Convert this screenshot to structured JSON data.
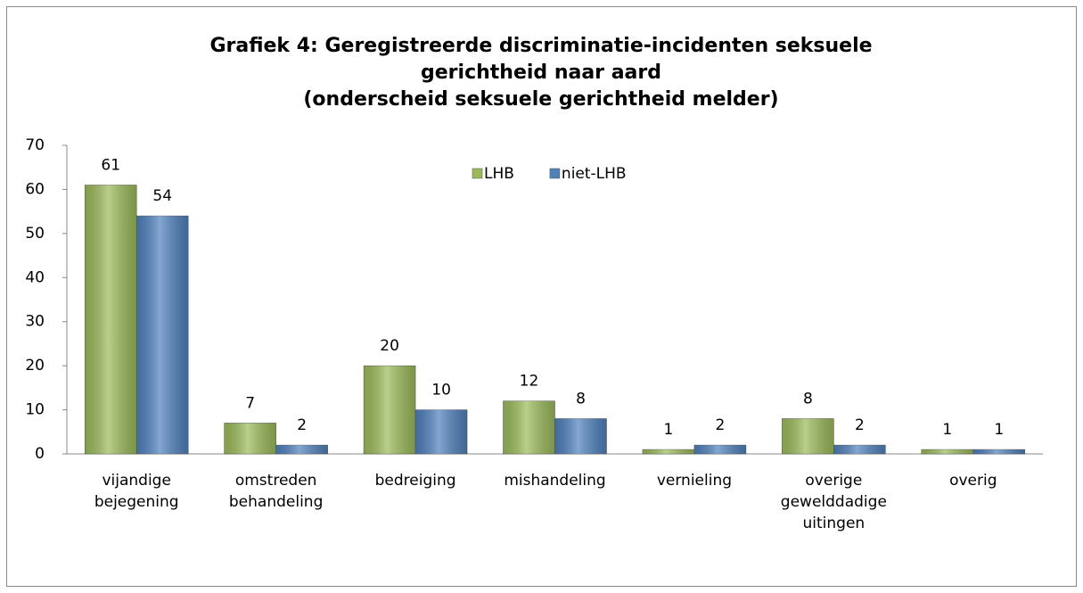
{
  "chart_data": {
    "type": "bar",
    "title": [
      "Grafiek 4: Geregistreerde discriminatie-incidenten seksuele",
      "gerichtheid naar aard",
      "(onderscheid seksuele gerichtheid melder)"
    ],
    "categories": [
      [
        "vijandige",
        "bejegening"
      ],
      [
        "omstreden",
        "behandeling"
      ],
      [
        "bedreiging"
      ],
      [
        "mishandeling"
      ],
      [
        "vernieling"
      ],
      [
        "overige",
        "gewelddadige",
        "uitingen"
      ],
      [
        "overig"
      ]
    ],
    "series": [
      {
        "name": "LHB",
        "color": "#9bbb59",
        "values": [
          61,
          7,
          20,
          12,
          1,
          8,
          1
        ]
      },
      {
        "name": "niet-LHB",
        "color": "#4f81bd",
        "values": [
          54,
          2,
          10,
          8,
          2,
          2,
          1
        ]
      }
    ],
    "ylim": [
      0,
      70
    ],
    "yticks": [
      0,
      10,
      20,
      30,
      40,
      50,
      60,
      70
    ],
    "grid": false,
    "legend": "top"
  }
}
